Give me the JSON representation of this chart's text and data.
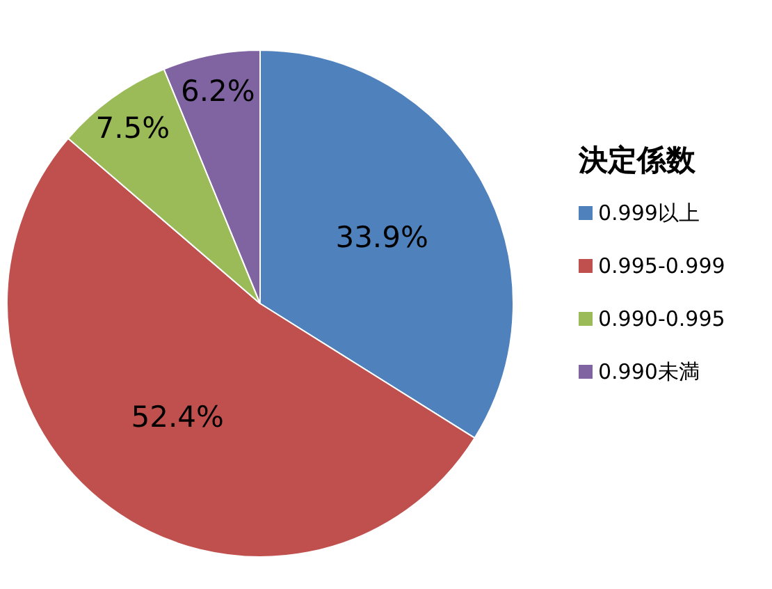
{
  "chart_data": {
    "type": "pie",
    "legend_title": "決定係数",
    "legend": "right",
    "categories": [
      "0.999以上",
      "0.995-0.999",
      "0.990-0.995",
      "0.990未満"
    ],
    "values": [
      33.9,
      52.4,
      7.5,
      6.2
    ],
    "colors": [
      "#4f81bd",
      "#c0504d",
      "#9bbb59",
      "#8064a2"
    ],
    "value_labels": [
      "33.9%",
      "52.4%",
      "7.5%",
      "6.2%"
    ]
  }
}
